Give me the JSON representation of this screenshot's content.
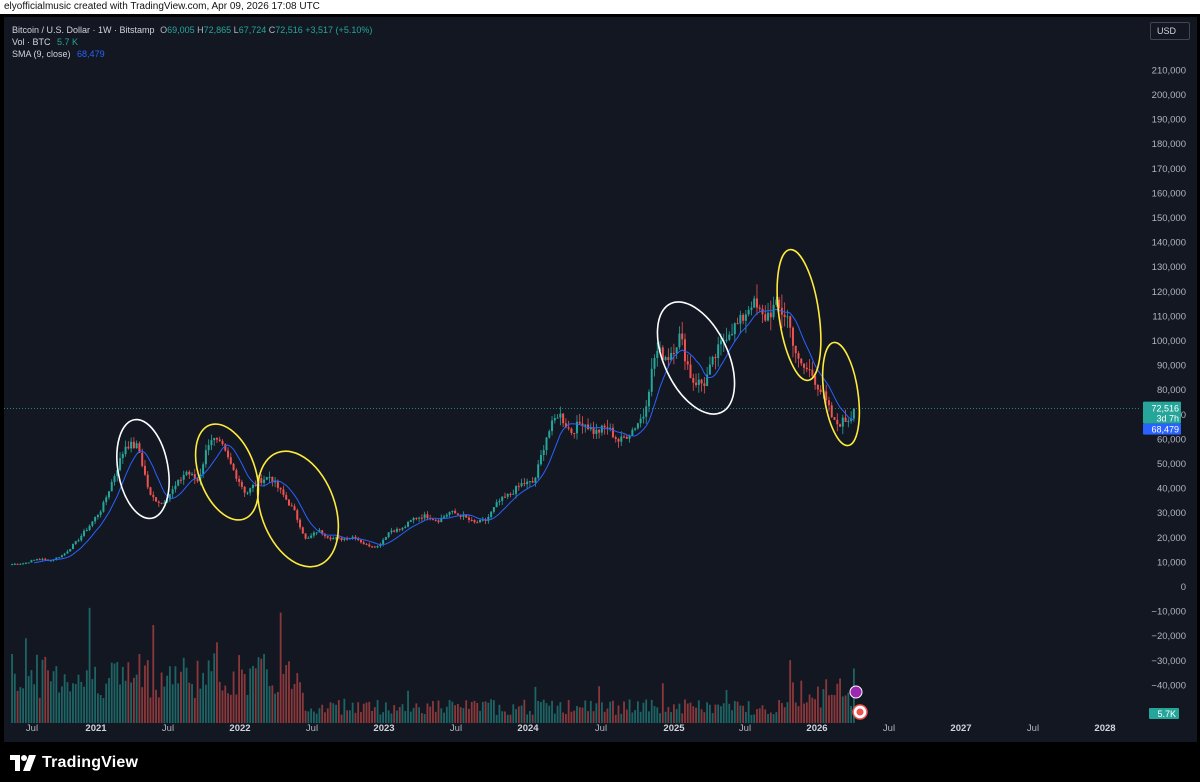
{
  "header": {
    "text": "elyofficialmusic created with TradingView.com, Apr 09, 2026 17:08 UTC"
  },
  "legend": {
    "symbol": "Bitcoin / U.S. Dollar · 1W · Bitstamp",
    "o_label": "O",
    "o_value": "69,005",
    "h_label": "H",
    "h_value": "72,865",
    "l_label": "L",
    "l_value": "67,724",
    "c_label": "C",
    "c_value": "72,516",
    "change": "+3,517 (+5.10%)",
    "vol_label": "Vol · BTC",
    "vol_value": "5.7 K",
    "sma_label": "SMA (9, close)",
    "sma_value": "68,479"
  },
  "currency_button": "USD",
  "price_tags": {
    "last": "72,516",
    "countdown": "3d 7h",
    "sma": "68,479",
    "volume": "5.7K"
  },
  "footer": {
    "brand": "TradingView"
  },
  "colors": {
    "up": "#26a69a",
    "down": "#ef5350",
    "sma": "#2962ff",
    "background": "#131722",
    "annotation_yellow": "#ffeb3b",
    "annotation_white": "#ffffff"
  },
  "chart_data": {
    "type": "candlestick",
    "interval": "1W",
    "x_ticks": [
      "Jul",
      "2021",
      "Jul",
      "2022",
      "Jul",
      "2023",
      "Jul",
      "2024",
      "Jul",
      "2025",
      "Jul",
      "2026",
      "Jul",
      "2027",
      "Jul",
      "2028"
    ],
    "y_ticks": [
      "210,000",
      "200,000",
      "190,000",
      "180,000",
      "170,000",
      "160,000",
      "150,000",
      "140,000",
      "130,000",
      "120,000",
      "110,000",
      "100,000",
      "90,000",
      "80,000",
      "70,000",
      "60,000",
      "50,000",
      "40,000",
      "30,000",
      "20,000",
      "10,000",
      "0",
      "−10,000",
      "−20,000",
      "−30,000",
      "−40,000"
    ],
    "ylim": [
      -50000,
      216000
    ],
    "x_range": [
      "2020-05",
      "2028-04"
    ],
    "price_series": {
      "name": "BTCUSD weekly close (approx.)",
      "points": [
        [
          "2020-06",
          9300
        ],
        [
          "2020-07",
          9700
        ],
        [
          "2020-08",
          11500
        ],
        [
          "2020-09",
          10800
        ],
        [
          "2020-10",
          13200
        ],
        [
          "2020-11",
          18500
        ],
        [
          "2020-12",
          25000
        ],
        [
          "2021-01",
          32000
        ],
        [
          "2021-02",
          45000
        ],
        [
          "2021-03",
          58000
        ],
        [
          "2021-04",
          57000
        ],
        [
          "2021-05",
          37000
        ],
        [
          "2021-06",
          34000
        ],
        [
          "2021-07",
          40000
        ],
        [
          "2021-08",
          47000
        ],
        [
          "2021-09",
          43000
        ],
        [
          "2021-10",
          61000
        ],
        [
          "2021-11",
          57000
        ],
        [
          "2021-12",
          47000
        ],
        [
          "2022-01",
          38000
        ],
        [
          "2022-02",
          43000
        ],
        [
          "2022-03",
          45000
        ],
        [
          "2022-04",
          38000
        ],
        [
          "2022-05",
          31000
        ],
        [
          "2022-06",
          19000
        ],
        [
          "2022-07",
          23000
        ],
        [
          "2022-08",
          20000
        ],
        [
          "2022-09",
          19500
        ],
        [
          "2022-10",
          20500
        ],
        [
          "2022-11",
          17000
        ],
        [
          "2022-12",
          16500
        ],
        [
          "2023-01",
          23000
        ],
        [
          "2023-02",
          23500
        ],
        [
          "2023-03",
          28000
        ],
        [
          "2023-04",
          29000
        ],
        [
          "2023-05",
          27000
        ],
        [
          "2023-06",
          30500
        ],
        [
          "2023-07",
          29000
        ],
        [
          "2023-08",
          26000
        ],
        [
          "2023-09",
          27000
        ],
        [
          "2023-10",
          34500
        ],
        [
          "2023-11",
          37700
        ],
        [
          "2023-12",
          42000
        ],
        [
          "2024-01",
          42500
        ],
        [
          "2024-02",
          61000
        ],
        [
          "2024-03",
          71000
        ],
        [
          "2024-04",
          63000
        ],
        [
          "2024-05",
          67500
        ],
        [
          "2024-06",
          62700
        ],
        [
          "2024-07",
          65000
        ],
        [
          "2024-08",
          59000
        ],
        [
          "2024-09",
          63500
        ],
        [
          "2024-10",
          70000
        ],
        [
          "2024-11",
          96000
        ],
        [
          "2024-12",
          93500
        ],
        [
          "2025-01",
          102000
        ],
        [
          "2025-02",
          84000
        ],
        [
          "2025-03",
          82500
        ],
        [
          "2025-04",
          94000
        ],
        [
          "2025-05",
          104000
        ],
        [
          "2025-06",
          107000
        ],
        [
          "2025-07",
          116000
        ],
        [
          "2025-08",
          109000
        ],
        [
          "2025-09",
          114000
        ],
        [
          "2025-10",
          110000
        ],
        [
          "2025-11",
          90000
        ],
        [
          "2025-12",
          87500
        ],
        [
          "2026-01",
          78000
        ],
        [
          "2026-02",
          66000
        ],
        [
          "2026-03",
          68000
        ],
        [
          "2026-04",
          72516
        ]
      ]
    },
    "sma_series": {
      "name": "SMA (9, close)",
      "last": 68479
    },
    "volume_series": {
      "name": "Vol · BTC",
      "last": "5.7K"
    },
    "annotations": [
      {
        "shape": "ellipse",
        "color": "white"
      },
      {
        "shape": "ellipse",
        "color": "yellow"
      },
      {
        "shape": "ellipse",
        "color": "yellow"
      },
      {
        "shape": "ellipse",
        "color": "white"
      },
      {
        "shape": "ellipse",
        "color": "yellow"
      },
      {
        "shape": "ellipse",
        "color": "yellow"
      }
    ],
    "grid": false
  }
}
